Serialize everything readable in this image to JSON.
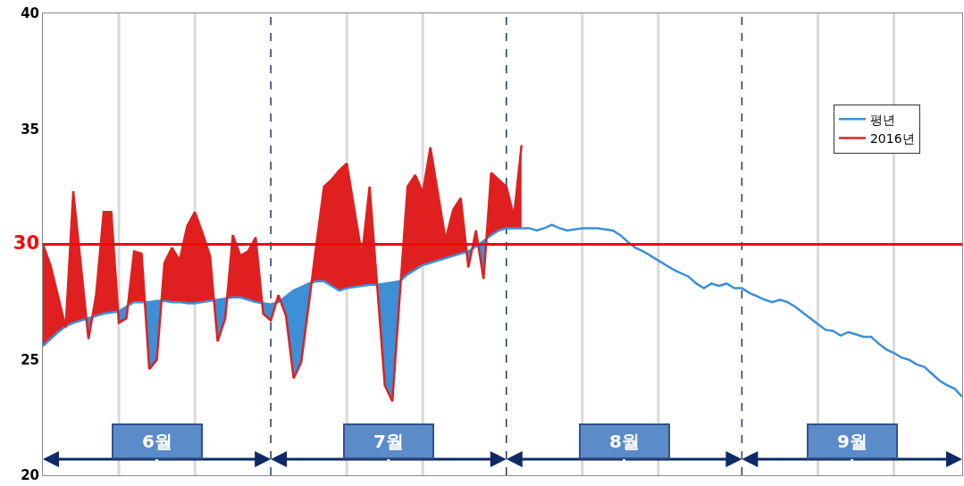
{
  "chart_data": {
    "type": "line",
    "categories": [
      null,
      null,
      null,
      null,
      null,
      null,
      null,
      null,
      null,
      null,
      null,
      null,
      null,
      null,
      null,
      null,
      null,
      null,
      null,
      null,
      null,
      null,
      null,
      null,
      null,
      null,
      null,
      null,
      null,
      null,
      null,
      null,
      null,
      null,
      null,
      null,
      null,
      null,
      null,
      null,
      null,
      null,
      null,
      null,
      null,
      null,
      null,
      null,
      null,
      null,
      null,
      null,
      null,
      null,
      null,
      null,
      null,
      null,
      null,
      null,
      null,
      null,
      null,
      null,
      null,
      null,
      null,
      null,
      null,
      null,
      null,
      null,
      null,
      null,
      null,
      null,
      null,
      null,
      null,
      null,
      null,
      null,
      null,
      null,
      null,
      null,
      null,
      null,
      null,
      null,
      null,
      null,
      null,
      null,
      null,
      null,
      null,
      null,
      null,
      null,
      null,
      null,
      null,
      null,
      null,
      null,
      null,
      null,
      null,
      null,
      null,
      null,
      null,
      null,
      null,
      null,
      null,
      null,
      null,
      null,
      null,
      null
    ],
    "series": [
      {
        "name": "평년",
        "color": "#3d8fd6",
        "values": [
          25.6,
          25.9,
          26.2,
          26.45,
          26.6,
          26.7,
          26.8,
          26.9,
          27.0,
          27.05,
          27.1,
          27.3,
          27.5,
          27.5,
          27.5,
          27.55,
          27.55,
          27.5,
          27.5,
          27.45,
          27.45,
          27.5,
          27.55,
          27.6,
          27.65,
          27.7,
          27.7,
          27.6,
          27.5,
          27.45,
          27.4,
          27.5,
          27.75,
          28.0,
          28.15,
          28.3,
          28.4,
          28.4,
          28.2,
          28.0,
          28.1,
          28.15,
          28.2,
          28.25,
          28.25,
          28.3,
          28.35,
          28.4,
          28.7,
          28.9,
          29.1,
          29.2,
          29.3,
          29.4,
          29.5,
          29.6,
          29.7,
          29.9,
          30.15,
          30.4,
          30.6,
          30.7,
          30.7,
          30.7,
          30.7,
          30.6,
          30.7,
          30.85,
          30.7,
          30.6,
          30.65,
          30.7,
          30.7,
          30.7,
          30.65,
          30.6,
          30.4,
          30.1,
          29.85,
          29.7,
          29.5,
          29.3,
          29.1,
          28.9,
          28.75,
          28.6,
          28.3,
          28.1,
          28.3,
          28.2,
          28.3,
          28.1,
          28.1,
          27.9,
          27.75,
          27.6,
          27.5,
          27.6,
          27.5,
          27.3,
          27.05,
          26.8,
          26.55,
          26.3,
          26.25,
          26.05,
          26.2,
          26.1,
          26.0,
          26.0,
          25.7,
          25.45,
          25.3,
          25.1,
          25.0,
          24.8,
          24.7,
          24.4,
          24.1,
          23.9,
          23.75,
          23.4
        ]
      },
      {
        "name": "2016년",
        "color": "#e02020",
        "values": [
          30.0,
          29.1,
          27.75,
          26.4,
          32.3,
          29.1,
          25.9,
          27.8,
          31.4,
          31.4,
          26.6,
          26.8,
          29.7,
          29.6,
          24.6,
          25.0,
          29.2,
          29.85,
          29.3,
          30.8,
          31.4,
          30.5,
          29.5,
          25.8,
          26.8,
          30.4,
          29.5,
          29.7,
          30.3,
          27.0,
          26.7,
          27.8,
          26.9,
          24.2,
          24.9,
          27.4,
          30.0,
          32.5,
          32.8,
          33.2,
          33.5,
          31.5,
          29.5,
          32.5,
          28.2,
          23.9,
          23.2,
          27.9,
          32.5,
          33.0,
          32.25,
          34.2,
          32.2,
          30.2,
          31.5,
          32.0,
          29.0,
          30.6,
          28.5,
          33.1,
          32.8,
          32.5,
          31.2,
          34.3,
          null,
          null,
          null,
          null,
          null,
          null,
          null,
          null,
          null,
          null,
          null,
          null,
          null,
          null,
          null,
          null,
          null,
          null,
          null,
          null,
          null,
          null,
          null,
          null,
          null,
          null,
          null,
          null,
          null,
          null,
          null,
          null,
          null,
          null,
          null,
          null,
          null,
          null,
          null,
          null,
          null,
          null,
          null,
          null,
          null,
          null,
          null,
          null,
          null,
          null,
          null,
          null,
          null,
          null,
          null,
          null,
          null,
          null
        ]
      }
    ],
    "ylim": [
      20,
      40
    ],
    "yticks": [
      20,
      25,
      30,
      35,
      40
    ],
    "tick_labels": "y",
    "grid": "x",
    "legend": "right",
    "marker": "none",
    "line_style": "solid",
    "ref_lines": [
      {
        "axis": "y",
        "value": 30,
        "color": "#ff0000",
        "line_style": "solid"
      }
    ],
    "annotations": [
      "6월",
      "7월",
      "8월",
      "9월"
    ]
  }
}
